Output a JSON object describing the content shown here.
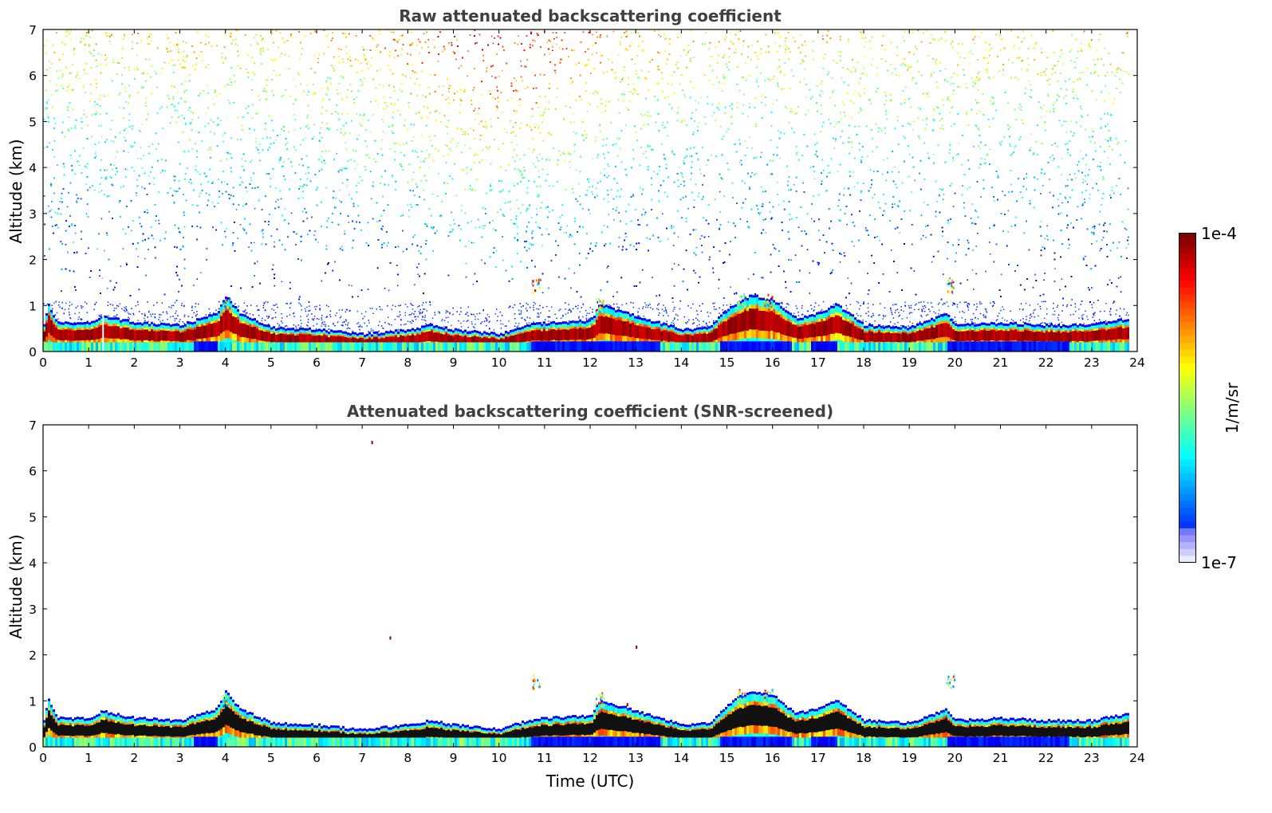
{
  "chart_data": [
    {
      "type": "heatmap",
      "title": "Raw attenuated backscattering coefficient",
      "xlabel": "",
      "ylabel": "Altitude (km)",
      "xlim": [
        0,
        24
      ],
      "ylim": [
        0,
        7
      ],
      "x_ticks": [
        "0",
        "1",
        "2",
        "3",
        "4",
        "5",
        "6",
        "7",
        "8",
        "9",
        "10",
        "11",
        "12",
        "13",
        "14",
        "15",
        "16",
        "17",
        "18",
        "19",
        "20",
        "21",
        "22",
        "23",
        "24"
      ],
      "y_ticks": [
        "0",
        "1",
        "2",
        "3",
        "4",
        "5",
        "6",
        "7"
      ],
      "data_end_hour": 23.8,
      "boundary_layer_top_km": [
        [
          0,
          0.55
        ],
        [
          0.1,
          1.0
        ],
        [
          0.3,
          0.6
        ],
        [
          1,
          0.6
        ],
        [
          1.3,
          0.75
        ],
        [
          2,
          0.6
        ],
        [
          3,
          0.55
        ],
        [
          3.8,
          0.8
        ],
        [
          4,
          1.2
        ],
        [
          4.3,
          0.8
        ],
        [
          5,
          0.5
        ],
        [
          6,
          0.45
        ],
        [
          7,
          0.35
        ],
        [
          8,
          0.45
        ],
        [
          8.5,
          0.55
        ],
        [
          9,
          0.45
        ],
        [
          10,
          0.35
        ],
        [
          10.6,
          0.55
        ],
        [
          11,
          0.6
        ],
        [
          12,
          0.65
        ],
        [
          12.2,
          1.0
        ],
        [
          13,
          0.75
        ],
        [
          14,
          0.45
        ],
        [
          14.6,
          0.5
        ],
        [
          15,
          0.9
        ],
        [
          15.5,
          1.2
        ],
        [
          16,
          1.1
        ],
        [
          16.5,
          0.7
        ],
        [
          17,
          0.8
        ],
        [
          17.4,
          1.0
        ],
        [
          18,
          0.55
        ],
        [
          19,
          0.5
        ],
        [
          19.8,
          0.8
        ],
        [
          20,
          0.55
        ],
        [
          21,
          0.6
        ],
        [
          22,
          0.55
        ],
        [
          23,
          0.55
        ],
        [
          23.8,
          0.7
        ]
      ],
      "elevated_layers": [
        {
          "hour": 4.0,
          "altitude_km": 1.1
        },
        {
          "hour": 10.8,
          "altitude_km": 1.5
        },
        {
          "hour": 12.2,
          "altitude_km": 1.1
        },
        {
          "hour": 15.3,
          "altitude_km": 1.2
        },
        {
          "hour": 15.9,
          "altitude_km": 1.2
        },
        {
          "hour": 19.9,
          "altitude_km": 1.5
        }
      ],
      "colorscale": "jet",
      "colorbar": {
        "min": "1e-7",
        "max": "1e-4",
        "label": "1/m/sr"
      }
    },
    {
      "type": "heatmap",
      "title": "Attenuated backscattering coefficient (SNR-screened)",
      "xlabel": "Time (UTC)",
      "ylabel": "Altitude (km)",
      "xlim": [
        0,
        24
      ],
      "ylim": [
        0,
        7
      ],
      "x_ticks": [
        "0",
        "1",
        "2",
        "3",
        "4",
        "5",
        "6",
        "7",
        "8",
        "9",
        "10",
        "11",
        "12",
        "13",
        "14",
        "15",
        "16",
        "17",
        "18",
        "19",
        "20",
        "21",
        "22",
        "23",
        "24"
      ],
      "y_ticks": [
        "0",
        "1",
        "2",
        "3",
        "4",
        "5",
        "6",
        "7"
      ],
      "data_end_hour": 23.8,
      "colorscale": "jet",
      "colorbar": {
        "min": "1e-7",
        "max": "1e-4",
        "label": "1/m/sr"
      }
    }
  ],
  "colorbar": {
    "max_label": "1e-4",
    "min_label": "1e-7",
    "unit_label": "1/m/sr",
    "colors": [
      "#00007f",
      "#0000ff",
      "#007fff",
      "#00ffff",
      "#7fff7f",
      "#ffff00",
      "#ff7f00",
      "#ff0000",
      "#7f0000"
    ]
  }
}
